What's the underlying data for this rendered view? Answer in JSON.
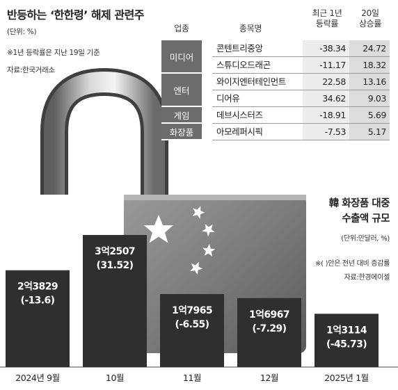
{
  "title": "반등하는 ‘한한령’ 해제 관련주",
  "table": {
    "unit": "(단위: %)",
    "footnote": "※1년 등락률은 지난 19일 기준",
    "source": "자료:한국거래소",
    "headers": {
      "sector": "업종",
      "name": "종목명",
      "change_1y": [
        "최근 1년",
        "등락률"
      ],
      "change_20d": [
        "20일",
        "상승률"
      ]
    },
    "groups": [
      {
        "sector": "미디어",
        "rows": [
          {
            "name": "콘텐트리중앙",
            "change_1y": "-38.34",
            "change_20d": "24.72"
          },
          {
            "name": "스튜디오드래곤",
            "change_1y": "-11.17",
            "change_20d": "18.32"
          }
        ]
      },
      {
        "sector": "엔터",
        "rows": [
          {
            "name": "와이지엔터테인먼트",
            "change_1y": "22.58",
            "change_20d": "13.16"
          },
          {
            "name": "디어유",
            "change_1y": "34.62",
            "change_20d": "9.03"
          }
        ]
      },
      {
        "sector": "게임",
        "rows": [
          {
            "name": "데브시스터즈",
            "change_1y": "-18.91",
            "change_20d": "5.69"
          }
        ]
      },
      {
        "sector": "화장품",
        "rows": [
          {
            "name": "아모레퍼시픽",
            "change_1y": "-7.53",
            "change_20d": "5.17"
          }
        ]
      }
    ]
  },
  "chart_data": {
    "type": "bar",
    "title": [
      "韓 화장품 대중",
      "수출액 규모"
    ],
    "unit": "(단위:만달러, %)",
    "note": "※( )안은 전년 대비 증감률",
    "source": "자료:한경에이셀",
    "categories": [
      "2024년 9월",
      "10월",
      "11월",
      "12월",
      "2025년 1월"
    ],
    "values": [
      23829,
      32507,
      17965,
      16967,
      13114
    ],
    "value_labels": [
      "2억3829",
      "3억2507",
      "1억7965",
      "1억6967",
      "1억3114"
    ],
    "growth_labels": [
      "(-13.6)",
      "(31.52)",
      "(-6.55)",
      "(-7.29)",
      "(-45.73)"
    ],
    "growth_rates": [
      -13.6,
      31.52,
      -6.55,
      -7.29,
      -45.73
    ],
    "bar_color": "#2f2f2f"
  },
  "colors": {
    "sector_bg": "#6c6c6c",
    "num_bg": "#ededed",
    "bar": "#2f2f2f",
    "lock_body": "#8c8c8c",
    "flag_star": "#ffffff"
  }
}
